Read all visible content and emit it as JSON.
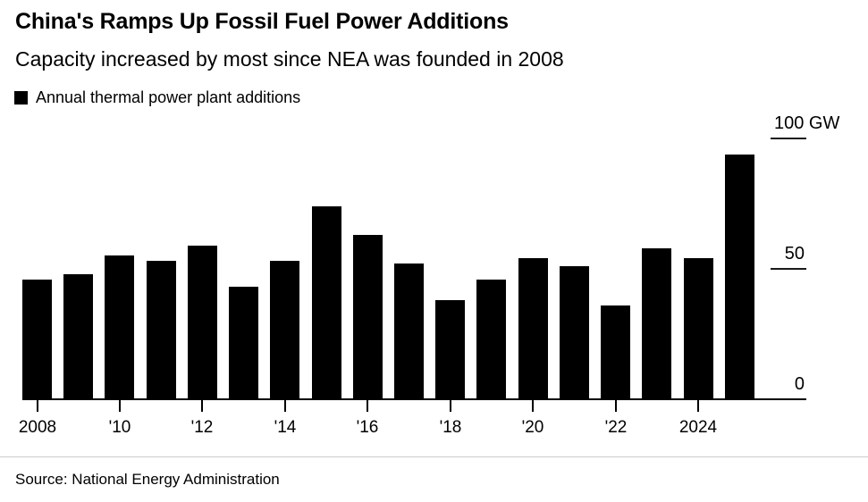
{
  "header": {
    "title": "China's Ramps Up Fossil Fuel Power Additions",
    "subtitle": "Capacity increased by most since NEA was founded in 2008"
  },
  "legend": {
    "label": "Annual thermal power plant additions",
    "swatch_color": "#000000"
  },
  "chart_data": {
    "type": "bar",
    "title": "China's Ramps Up Fossil Fuel Power Additions",
    "subtitle": "Capacity increased by most since NEA was founded in 2008",
    "series_name": "Annual thermal power plant additions",
    "x": [
      2008,
      2009,
      2010,
      2011,
      2012,
      2013,
      2014,
      2015,
      2016,
      2017,
      2018,
      2019,
      2020,
      2021,
      2022,
      2023,
      2024,
      2025
    ],
    "values": [
      46,
      48,
      55,
      53,
      59,
      43,
      53,
      74,
      63,
      52,
      38,
      46,
      54,
      51,
      36,
      58,
      54,
      94
    ],
    "unit": "GW",
    "ylim": [
      0,
      100
    ],
    "yticks": [
      {
        "value": 0,
        "label": "0"
      },
      {
        "value": 50,
        "label": "50"
      },
      {
        "value": 100,
        "label": "100 GW"
      }
    ],
    "xticks": [
      {
        "year": 2008,
        "label": "2008"
      },
      {
        "year": 2010,
        "label": "'10"
      },
      {
        "year": 2012,
        "label": "'12"
      },
      {
        "year": 2014,
        "label": "'14"
      },
      {
        "year": 2016,
        "label": "'16"
      },
      {
        "year": 2018,
        "label": "'18"
      },
      {
        "year": 2020,
        "label": "'20"
      },
      {
        "year": 2022,
        "label": "'22"
      },
      {
        "year": 2024,
        "label": "2024"
      }
    ],
    "bar_color": "#000000",
    "grid": false,
    "legend_position": "top-left",
    "axis_side": "right"
  },
  "footer": {
    "source": "Source: National Energy Administration"
  }
}
